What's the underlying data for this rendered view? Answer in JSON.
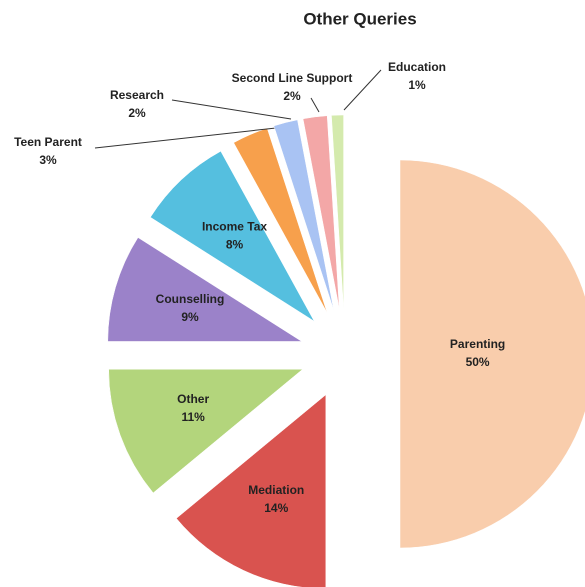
{
  "chart_data": {
    "type": "pie",
    "title": "Other Queries",
    "categories": [
      "Parenting",
      "Mediation",
      "Other",
      "Counselling",
      "Income Tax",
      "Teen Parent",
      "Research",
      "Second Line Support",
      "Education"
    ],
    "values": [
      50,
      14,
      11,
      9,
      8,
      3,
      2,
      2,
      1
    ],
    "value_labels": [
      "50%",
      "14%",
      "11%",
      "9%",
      "8%",
      "3%",
      "2%",
      "2%",
      "1%"
    ],
    "colors": [
      "#f9cdac",
      "#d9534f",
      "#b3d57c",
      "#9b82c9",
      "#55bfdf",
      "#f7a04c",
      "#a9c3f3",
      "#f3a7a7",
      "#d4eaad"
    ]
  }
}
